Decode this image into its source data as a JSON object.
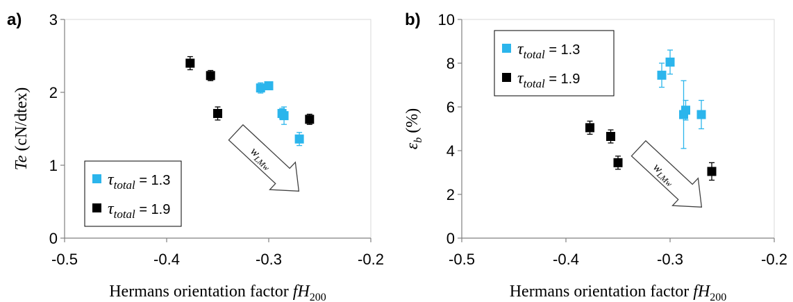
{
  "chart_data": [
    {
      "panel": "a)",
      "type": "scatter",
      "xlabel": "Hermans orientation factor",
      "xlabel_sym": "fH",
      "xlabel_sub": "200",
      "ylabel_sym": "Te",
      "ylabel_unit": "(cN/dtex)",
      "xlim": [
        -0.5,
        -0.2
      ],
      "ylim": [
        0,
        3
      ],
      "xticks": [
        -0.5,
        -0.4,
        -0.3,
        -0.2
      ],
      "yticks": [
        0,
        1,
        2,
        3
      ],
      "xtick_labels": [
        "-0.5",
        "-0.4",
        "-0.3",
        "-0.2"
      ],
      "ytick_labels": [
        "0",
        "1",
        "2",
        "3"
      ],
      "grid": false,
      "legend_position": "bottom-left",
      "arrow_label": "w",
      "arrow_label_sub": "LMw",
      "series": [
        {
          "name_sym": "τ",
          "name_sub": "total",
          "name_val": "= 1.3",
          "color": "#2bb5ec",
          "points": [
            {
              "x": -0.308,
              "y": 2.06,
              "err": 0.07
            },
            {
              "x": -0.3,
              "y": 2.09,
              "err": 0.04
            },
            {
              "x": -0.287,
              "y": 1.71,
              "err": 0.07
            },
            {
              "x": -0.285,
              "y": 1.68,
              "err": 0.12
            },
            {
              "x": -0.27,
              "y": 1.36,
              "err": 0.09
            }
          ]
        },
        {
          "name_sym": "τ",
          "name_sub": "total",
          "name_val": "= 1.9",
          "color": "#000000",
          "points": [
            {
              "x": -0.377,
              "y": 2.4,
              "err": 0.09
            },
            {
              "x": -0.357,
              "y": 2.23,
              "err": 0.07
            },
            {
              "x": -0.35,
              "y": 1.71,
              "err": 0.09
            },
            {
              "x": -0.26,
              "y": 1.63,
              "err": 0.07
            }
          ]
        }
      ]
    },
    {
      "panel": "b)",
      "type": "scatter",
      "xlabel": "Hermans orientation factor",
      "xlabel_sym": "fH",
      "xlabel_sub": "200",
      "ylabel_sym": "ε",
      "ylabel_sub": "b",
      "ylabel_unit": "(%)",
      "xlim": [
        -0.5,
        -0.2
      ],
      "ylim": [
        0,
        10
      ],
      "xticks": [
        -0.5,
        -0.4,
        -0.3,
        -0.2
      ],
      "yticks": [
        0,
        2,
        4,
        6,
        8,
        10
      ],
      "xtick_labels": [
        "-0.5",
        "-0.4",
        "-0.3",
        "-0.2"
      ],
      "ytick_labels": [
        "0",
        "2",
        "4",
        "6",
        "8",
        "10"
      ],
      "grid": false,
      "legend_position": "top-left",
      "arrow_label": "w",
      "arrow_label_sub": "LMw",
      "series": [
        {
          "name_sym": "τ",
          "name_sub": "total",
          "name_val": "= 1.3",
          "color": "#2bb5ec",
          "points": [
            {
              "x": -0.308,
              "y": 7.45,
              "err": 0.55
            },
            {
              "x": -0.3,
              "y": 8.05,
              "err": 0.55
            },
            {
              "x": -0.287,
              "y": 5.65,
              "err": 1.55
            },
            {
              "x": -0.285,
              "y": 5.85,
              "err": 0.45
            },
            {
              "x": -0.27,
              "y": 5.65,
              "err": 0.65
            }
          ]
        },
        {
          "name_sym": "τ",
          "name_sub": "total",
          "name_val": "= 1.9",
          "color": "#000000",
          "points": [
            {
              "x": -0.377,
              "y": 5.05,
              "err": 0.3
            },
            {
              "x": -0.357,
              "y": 4.65,
              "err": 0.3
            },
            {
              "x": -0.35,
              "y": 3.45,
              "err": 0.3
            },
            {
              "x": -0.26,
              "y": 3.05,
              "err": 0.4
            }
          ]
        }
      ]
    }
  ]
}
